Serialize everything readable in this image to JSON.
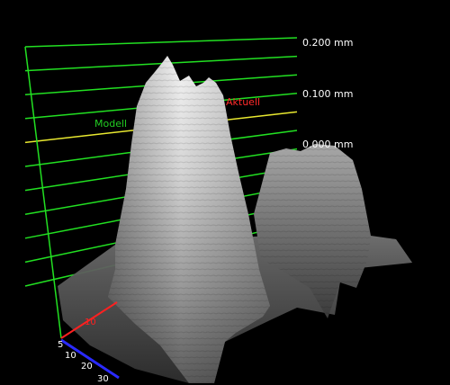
{
  "viewer": {
    "scale_labels": [
      "0.200 mm",
      "0.100 mm",
      "0.000 mm"
    ],
    "model_label": "Modell",
    "actual_label": "Aktuell",
    "x_axis_label": "10",
    "z_axis_ticks": [
      "5",
      "10",
      "20",
      "30"
    ],
    "colors": {
      "background": "#000000",
      "grid": "#22e022",
      "zero_plane": "#e8e830",
      "model_text": "#22cc22",
      "actual_text": "#ff2a2a",
      "axis_red": "#ff2020",
      "axis_blue": "#2a2aff",
      "label_white": "#ffffff"
    }
  }
}
